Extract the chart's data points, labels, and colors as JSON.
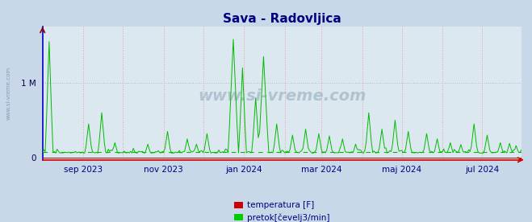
{
  "title": "Sava - Radovljica",
  "title_color": "#000080",
  "title_fontsize": 11,
  "bg_color": "#c8d8e8",
  "plot_bg_color": "#dce8f0",
  "grid_color_h": "#b0b8c8",
  "grid_color_v": "#e8a0a0",
  "ylabel_left": "1 M",
  "ytick_values": [
    0,
    1000000
  ],
  "ytick_labels": [
    "0",
    "1 M"
  ],
  "ylim": [
    -30000,
    1750000
  ],
  "xticklabels": [
    "sep 2023",
    "nov 2023",
    "jan 2024",
    "mar 2024",
    "maj 2024",
    "jul 2024"
  ],
  "xtick_color": "#000080",
  "watermark": "www.si-vreme.com",
  "watermark_color": "#aabccc",
  "legend_labels": [
    "temperatura [F]",
    "pretok[čevelj3/min]"
  ],
  "legend_colors": [
    "#cc0000",
    "#00cc00"
  ],
  "line_temp_color": "#cc0000",
  "line_flow_color": "#00bb00",
  "dashed_line_color": "#00bb00",
  "dashed_line_value": 75000,
  "x_spine_color": "#cc0000",
  "y_spine_color": "#0000cc",
  "n_points": 365
}
